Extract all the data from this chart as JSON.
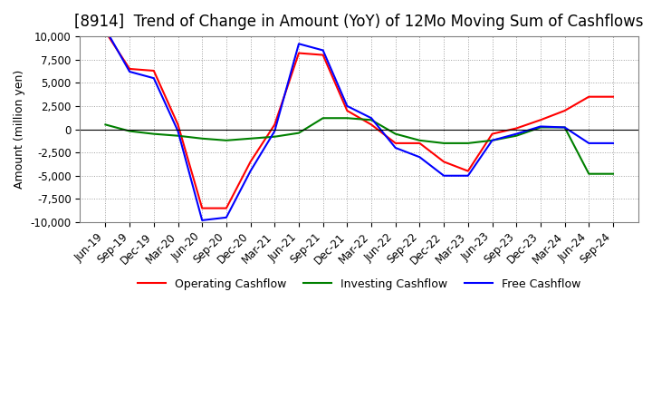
{
  "title": "[8914]  Trend of Change in Amount (YoY) of 12Mo Moving Sum of Cashflows",
  "ylabel": "Amount (million yen)",
  "ylim": [
    -10000,
    10000
  ],
  "yticks": [
    -10000,
    -7500,
    -5000,
    -2500,
    0,
    2500,
    5000,
    7500,
    10000
  ],
  "x_labels": [
    "Jun-19",
    "Sep-19",
    "Dec-19",
    "Mar-20",
    "Jun-20",
    "Sep-20",
    "Dec-20",
    "Mar-21",
    "Jun-21",
    "Sep-21",
    "Dec-21",
    "Mar-22",
    "Jun-22",
    "Sep-22",
    "Dec-22",
    "Mar-23",
    "Jun-23",
    "Sep-23",
    "Dec-23",
    "Mar-24",
    "Jun-24",
    "Sep-24"
  ],
  "operating": [
    10500,
    6500,
    6300,
    500,
    -8500,
    -8500,
    -3500,
    500,
    8200,
    8000,
    2000,
    500,
    -1500,
    -1500,
    -3500,
    -4500,
    -500,
    100,
    1000,
    2000,
    3500,
    3500
  ],
  "investing": [
    500,
    -200,
    -500,
    -700,
    -1000,
    -1200,
    -1000,
    -800,
    -400,
    1200,
    1200,
    1000,
    -500,
    -1200,
    -1500,
    -1500,
    -1200,
    -700,
    200,
    200,
    -4800,
    -4800
  ],
  "free": [
    10800,
    6200,
    5500,
    -200,
    -9800,
    -9500,
    -4500,
    -200,
    9200,
    8500,
    2500,
    1200,
    -2000,
    -3000,
    -5000,
    -5000,
    -1200,
    -500,
    300,
    200,
    -1500,
    -1500
  ],
  "operating_color": "#ff0000",
  "investing_color": "#008000",
  "free_color": "#0000ff",
  "background_color": "#ffffff",
  "grid_color": "#a0a0a0",
  "title_fontsize": 12,
  "label_fontsize": 9,
  "tick_fontsize": 8.5
}
